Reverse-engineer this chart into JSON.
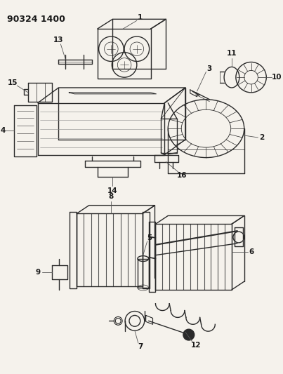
{
  "title": "90324 1400",
  "bg_color": "#f5f2ec",
  "line_color": "#2a2a2a",
  "label_color": "#1a1a1a",
  "fig_width": 4.03,
  "fig_height": 5.33,
  "dpi": 100
}
